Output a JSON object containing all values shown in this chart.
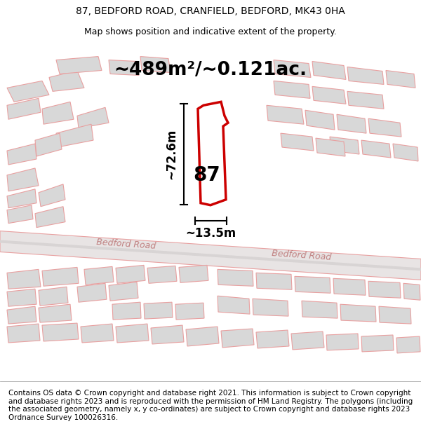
{
  "title_line1": "87, BEDFORD ROAD, CRANFIELD, BEDFORD, MK43 0HA",
  "title_line2": "Map shows position and indicative extent of the property.",
  "area_label": "~489m²/~0.121ac.",
  "width_label": "~13.5m",
  "height_label": "~72.6m",
  "number_label": "87",
  "road_label1": "Bedford Road",
  "road_label2": "Bedford Road",
  "footer_text": "Contains OS data © Crown copyright and database right 2021. This information is subject to Crown copyright and database rights 2023 and is reproduced with the permission of HM Land Registry. The polygons (including the associated geometry, namely x, y co-ordinates) are subject to Crown copyright and database rights 2023 Ordnance Survey 100026316.",
  "bg_color": "#f5f0f0",
  "map_bg": "#f5f0f0",
  "road_fill": "#e8e8e8",
  "building_fill": "#d8d8d8",
  "line_color": "#e8a0a0",
  "red_outline": "#cc0000",
  "highlight_fill": "#ffffff",
  "black": "#000000",
  "gray_text": "#c0a0a0",
  "title_fontsize": 10,
  "subtitle_fontsize": 9,
  "area_fontsize": 18,
  "label_fontsize": 11,
  "footer_fontsize": 7.5
}
